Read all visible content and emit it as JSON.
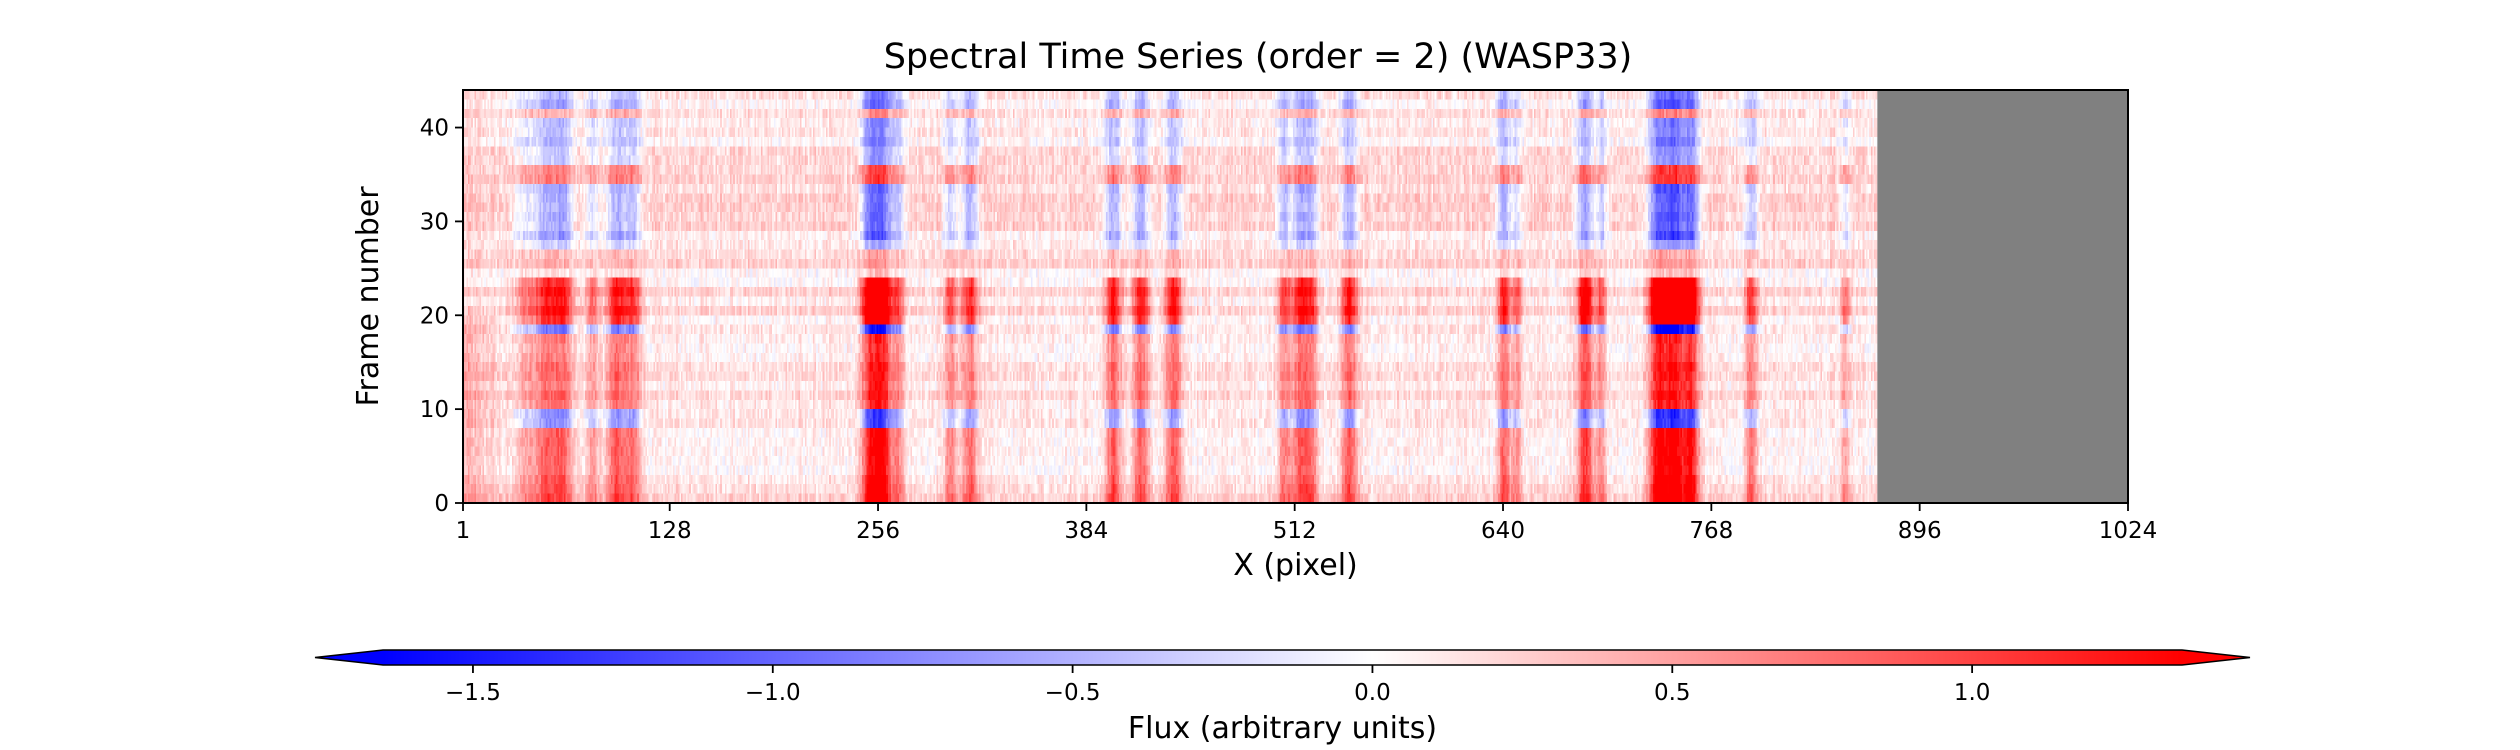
{
  "chart_data": {
    "type": "heatmap",
    "title": "Spectral Time Series (order = 2) (WASP33)",
    "xlabel": "X (pixel)",
    "ylabel": "Frame number",
    "xlim": [
      1,
      1024
    ],
    "ylim": [
      0,
      44
    ],
    "x_ticks": [
      1,
      128,
      256,
      384,
      512,
      640,
      768,
      896,
      1024
    ],
    "y_ticks": [
      0,
      10,
      20,
      30,
      40
    ],
    "n_frames": 44,
    "masked_x_start": 870,
    "colormap": "bwr",
    "masked_color": "#808080",
    "colorbar": {
      "label": "Flux (arbitrary units)",
      "range": [
        -1.65,
        1.35
      ],
      "ticks": [
        -1.5,
        -1.0,
        -0.5,
        0.0,
        0.5,
        1.0
      ],
      "tick_labels": [
        "−1.5",
        "−1.0",
        "−0.5",
        "0.0",
        "0.5",
        "1.0"
      ],
      "extend": "both",
      "placement": "bottom"
    },
    "spectral_features": [
      {
        "x": 40,
        "width": 8,
        "depth": 0.5
      },
      {
        "x": 52,
        "width": 6,
        "depth": 0.9
      },
      {
        "x": 62,
        "width": 6,
        "depth": 1.0
      },
      {
        "x": 80,
        "width": 4,
        "depth": 0.6
      },
      {
        "x": 95,
        "width": 6,
        "depth": 1.0
      },
      {
        "x": 105,
        "width": 5,
        "depth": 0.8
      },
      {
        "x": 250,
        "width": 5,
        "depth": 1.2
      },
      {
        "x": 258,
        "width": 6,
        "depth": 1.6
      },
      {
        "x": 268,
        "width": 4,
        "depth": 0.7
      },
      {
        "x": 300,
        "width": 4,
        "depth": 0.7
      },
      {
        "x": 312,
        "width": 5,
        "depth": 0.9
      },
      {
        "x": 400,
        "width": 5,
        "depth": 1.0
      },
      {
        "x": 417,
        "width": 5,
        "depth": 1.0
      },
      {
        "x": 437,
        "width": 5,
        "depth": 1.0
      },
      {
        "x": 505,
        "width": 4,
        "depth": 0.8
      },
      {
        "x": 515,
        "width": 5,
        "depth": 1.0
      },
      {
        "x": 522,
        "width": 4,
        "depth": 0.8
      },
      {
        "x": 545,
        "width": 5,
        "depth": 1.0
      },
      {
        "x": 640,
        "width": 4,
        "depth": 1.0
      },
      {
        "x": 648,
        "width": 3,
        "depth": 0.6
      },
      {
        "x": 690,
        "width": 5,
        "depth": 1.2
      },
      {
        "x": 700,
        "width": 3,
        "depth": 0.7
      },
      {
        "x": 735,
        "width": 6,
        "depth": 1.6
      },
      {
        "x": 745,
        "width": 6,
        "depth": 1.7
      },
      {
        "x": 755,
        "width": 5,
        "depth": 1.5
      },
      {
        "x": 792,
        "width": 4,
        "depth": 0.8
      },
      {
        "x": 850,
        "width": 3,
        "depth": 0.5
      }
    ],
    "frame_activity": [
      {
        "frames": [
          0,
          7
        ],
        "level": 0.7
      },
      {
        "frames": [
          8,
          9
        ],
        "level": -0.9
      },
      {
        "frames": [
          10,
          17
        ],
        "level": 0.55
      },
      {
        "frames": [
          18,
          18
        ],
        "level": -1.1
      },
      {
        "frames": [
          19,
          23
        ],
        "level": 1.0
      },
      {
        "frames": [
          24,
          26
        ],
        "level": 0.1
      },
      {
        "frames": [
          27,
          27
        ],
        "level": -0.5
      },
      {
        "frames": [
          28,
          33
        ],
        "level": -0.8
      },
      {
        "frames": [
          34,
          35
        ],
        "level": 0.4
      },
      {
        "frames": [
          36,
          40
        ],
        "level": -0.6
      },
      {
        "frames": [
          41,
          41
        ],
        "level": 0.2
      },
      {
        "frames": [
          42,
          43
        ],
        "level": -0.7
      }
    ]
  }
}
